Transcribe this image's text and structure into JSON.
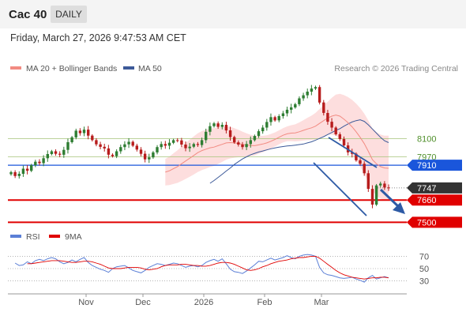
{
  "header": {
    "symbol": "Cac 40",
    "period": "DAILY",
    "timestamp": "Friday, March 27, 2026 9:47:53 AM CET"
  },
  "legend": {
    "ma20_label": "MA 20 + Bollinger Bands",
    "ma50_label": "MA 50",
    "research": "Research © 2026 Trading Central",
    "rsi_label": "RSI",
    "ma9_label": "9MA"
  },
  "colors": {
    "ma20": "#f28b82",
    "ma50": "#3d5a99",
    "band_fill": "#fddede",
    "candle_up": "#2e7d32",
    "candle_down": "#b71c1c",
    "resistance_box": "#1a56db",
    "support_box": "#e00000",
    "price_box": "#333333",
    "rsi": "#5b7fd6",
    "ma9": "#e00000",
    "arrow": "#2d5aa5"
  },
  "chart_data": [
    {
      "type": "candlestick",
      "title": "Cac 40",
      "x_ticks": [
        "Nov",
        "Dec",
        "2026",
        "Feb",
        "Mar"
      ],
      "ylim": [
        7440,
        8540
      ],
      "levels": [
        {
          "value": 8100,
          "label": "8100",
          "kind": "resistance-minor"
        },
        {
          "value": 7970,
          "label": "7970",
          "kind": "resistance-minor"
        },
        {
          "value": 7910,
          "label": "7910",
          "kind": "resistance"
        },
        {
          "value": 7747,
          "label": "7747",
          "kind": "last-price"
        },
        {
          "value": 7660,
          "label": "7660",
          "kind": "support"
        },
        {
          "value": 7500,
          "label": "7500",
          "kind": "support"
        }
      ],
      "series": [
        {
          "name": "Cac 40",
          "kind": "close",
          "values": [
            7860,
            7832,
            7848,
            7885,
            7870,
            7910,
            7935,
            7925,
            7960,
            7990,
            8010,
            7992,
            7985,
            8020,
            8075,
            8110,
            8158,
            8140,
            8165,
            8122,
            8090,
            8060,
            8042,
            8030,
            7985,
            7975,
            8010,
            8040,
            8060,
            8078,
            8050,
            8022,
            7992,
            7952,
            7966,
            8002,
            8040,
            8062,
            8050,
            8071,
            8090,
            8088,
            8058,
            8032,
            8043,
            8062,
            8055,
            8090,
            8150,
            8190,
            8210,
            8185,
            8200,
            8160,
            8112,
            8074,
            8058,
            8040,
            8062,
            8090,
            8120,
            8154,
            8180,
            8220,
            8255,
            8232,
            8262,
            8282,
            8308,
            8325,
            8348,
            8390,
            8412,
            8438,
            8460,
            8471,
            8360,
            8285,
            8222,
            8180,
            8132,
            8098,
            8052,
            8002,
            7992,
            7945,
            7920,
            7852,
            7740,
            7627,
            7765,
            7778,
            7750,
            7747
          ]
        },
        {
          "name": "MA 20",
          "kind": "line",
          "values": [
            7860,
            7870,
            7885,
            7900,
            7920,
            7940,
            7960,
            7980,
            8000,
            8015,
            8025,
            8035,
            8040,
            8050,
            8060,
            8070,
            8072,
            8070,
            8066,
            8060,
            8055,
            8052,
            8050,
            8056,
            8062,
            8070,
            8082,
            8095,
            8110,
            8125,
            8135,
            8140,
            8142,
            8150,
            8160,
            8170,
            8178,
            8190,
            8210,
            8230,
            8248,
            8262,
            8270,
            8262,
            8240,
            8215,
            8185,
            8150,
            8110,
            8065,
            8010,
            7950,
            7920,
            7900,
            7890,
            7888
          ]
        },
        {
          "name": "MA 50",
          "kind": "line",
          "values": [
            7780,
            7800,
            7822,
            7845,
            7868,
            7890,
            7915,
            7935,
            7955,
            7970,
            7985,
            7995,
            8005,
            8012,
            8020,
            8028,
            8034,
            8040,
            8044,
            8048,
            8050,
            8054,
            8058,
            8062,
            8070,
            8078,
            8090,
            8102,
            8115,
            8130,
            8145,
            8160,
            8172,
            8190,
            8206,
            8220,
            8230,
            8236,
            8225,
            8200,
            8170,
            8140,
            8110,
            8085,
            8072
          ]
        }
      ]
    },
    {
      "type": "line",
      "title": "RSI",
      "yticks": [
        70,
        50,
        30
      ],
      "ylim": [
        14,
        86
      ],
      "series": [
        {
          "name": "RSI",
          "values": [
            59,
            55,
            56,
            61,
            58,
            63,
            65,
            63,
            66,
            68,
            66,
            61,
            58,
            60,
            64,
            61,
            65,
            68,
            60,
            55,
            52,
            49,
            47,
            44,
            50,
            53,
            54,
            55,
            51,
            47,
            45,
            43,
            47,
            52,
            55,
            58,
            57,
            55,
            57,
            59,
            58,
            55,
            52,
            54,
            55,
            53,
            55,
            60,
            63,
            65,
            62,
            66,
            58,
            49,
            45,
            44,
            42,
            46,
            51,
            56,
            62,
            61,
            64,
            67,
            64,
            66,
            68,
            71,
            68,
            66,
            70,
            72,
            73,
            72,
            70,
            52,
            43,
            40,
            39,
            37,
            35,
            34,
            35,
            36,
            33,
            31,
            28,
            35,
            39,
            33,
            35,
            37,
            35
          ]
        },
        {
          "name": "9MA",
          "values": [
            58,
            58,
            59,
            60,
            61,
            62,
            63,
            63,
            63,
            62,
            61,
            60,
            60,
            61,
            62,
            62,
            61,
            59,
            57,
            54,
            51,
            50,
            50,
            50,
            51,
            52,
            52,
            52,
            51,
            49,
            48,
            49,
            50,
            53,
            55,
            56,
            56,
            56,
            57,
            57,
            56,
            55,
            55,
            54,
            54,
            55,
            57,
            59,
            60,
            60,
            59,
            57,
            54,
            51,
            48,
            47,
            48,
            50,
            53,
            55,
            58,
            60,
            62,
            63,
            64,
            66,
            67,
            68,
            68,
            69,
            70,
            70,
            67,
            62,
            57,
            52,
            47,
            43,
            40,
            38,
            36,
            35,
            34,
            33,
            34,
            35,
            35,
            36,
            36,
            35
          ]
        }
      ]
    }
  ]
}
